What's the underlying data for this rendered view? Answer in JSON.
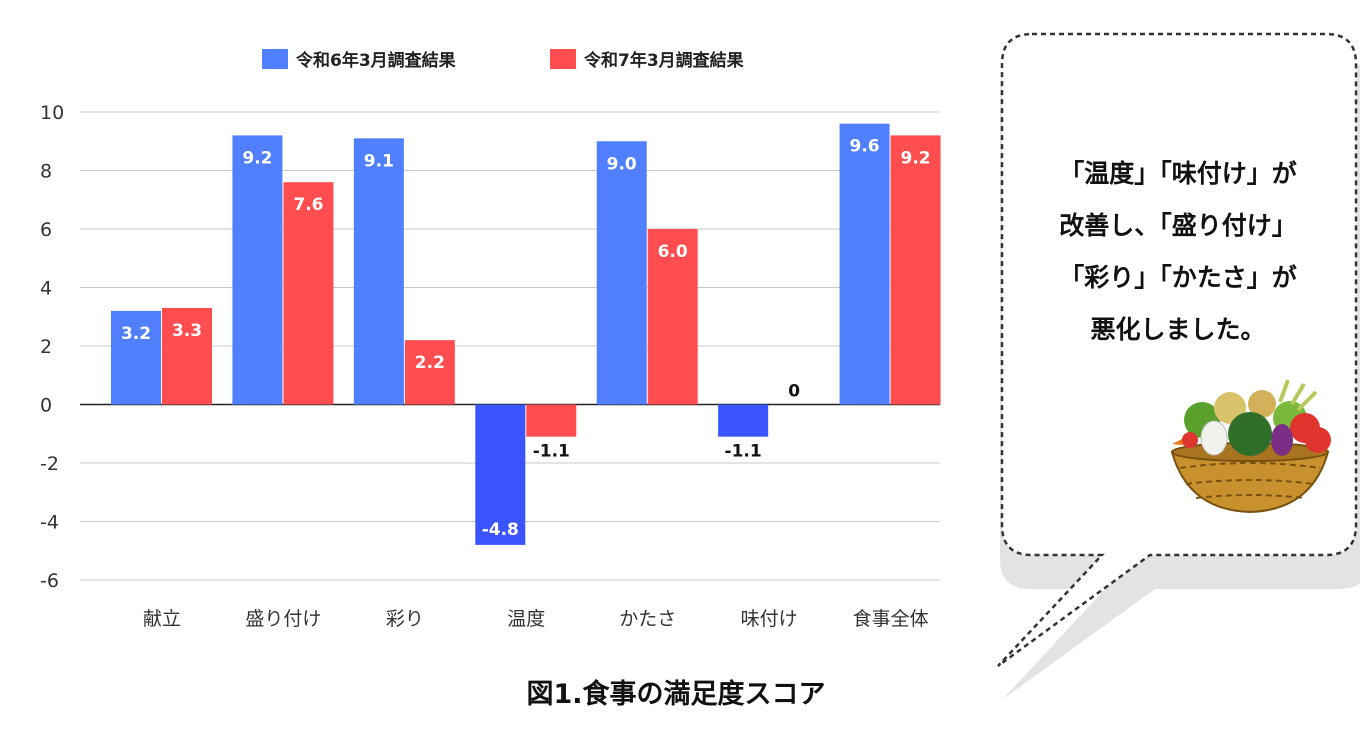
{
  "chart_data": {
    "type": "bar",
    "title": "図1.食事の満足度スコア",
    "xlabel": "",
    "ylabel": "",
    "categories": [
      "献立",
      "盛り付け",
      "彩り",
      "温度",
      "かたさ",
      "味付け",
      "食事全体"
    ],
    "series": [
      {
        "name": "令和6年3月調査結果",
        "color": "#5080ff",
        "values": [
          3.2,
          9.2,
          9.1,
          -4.8,
          9.0,
          -1.1,
          9.6
        ],
        "labels": [
          "3.2",
          "9.2",
          "9.1",
          "-4.8",
          "9.0",
          "-1.1",
          "9.6"
        ]
      },
      {
        "name": "令和7年3月調査結果",
        "color": "#ff4d50",
        "values": [
          3.3,
          7.6,
          2.2,
          -1.1,
          6.0,
          0,
          9.2
        ],
        "labels": [
          "3.3",
          "7.6",
          "2.2",
          "-1.1",
          "6.0",
          "0",
          "9.2"
        ]
      }
    ],
    "ylim": [
      -6,
      10
    ],
    "yticks": [
      "10",
      "8",
      "6",
      "4",
      "2",
      "0",
      "-2",
      "-4",
      "-6"
    ],
    "grid": true,
    "legend_position": "top-center"
  },
  "callout": {
    "lines": [
      "「温度」「味付け」が",
      "改善し、「盛り付け」",
      "「彩り」「かたさ」が",
      "悪化しました。"
    ]
  },
  "illustration": {
    "icon": "vegetable-basket-icon"
  }
}
